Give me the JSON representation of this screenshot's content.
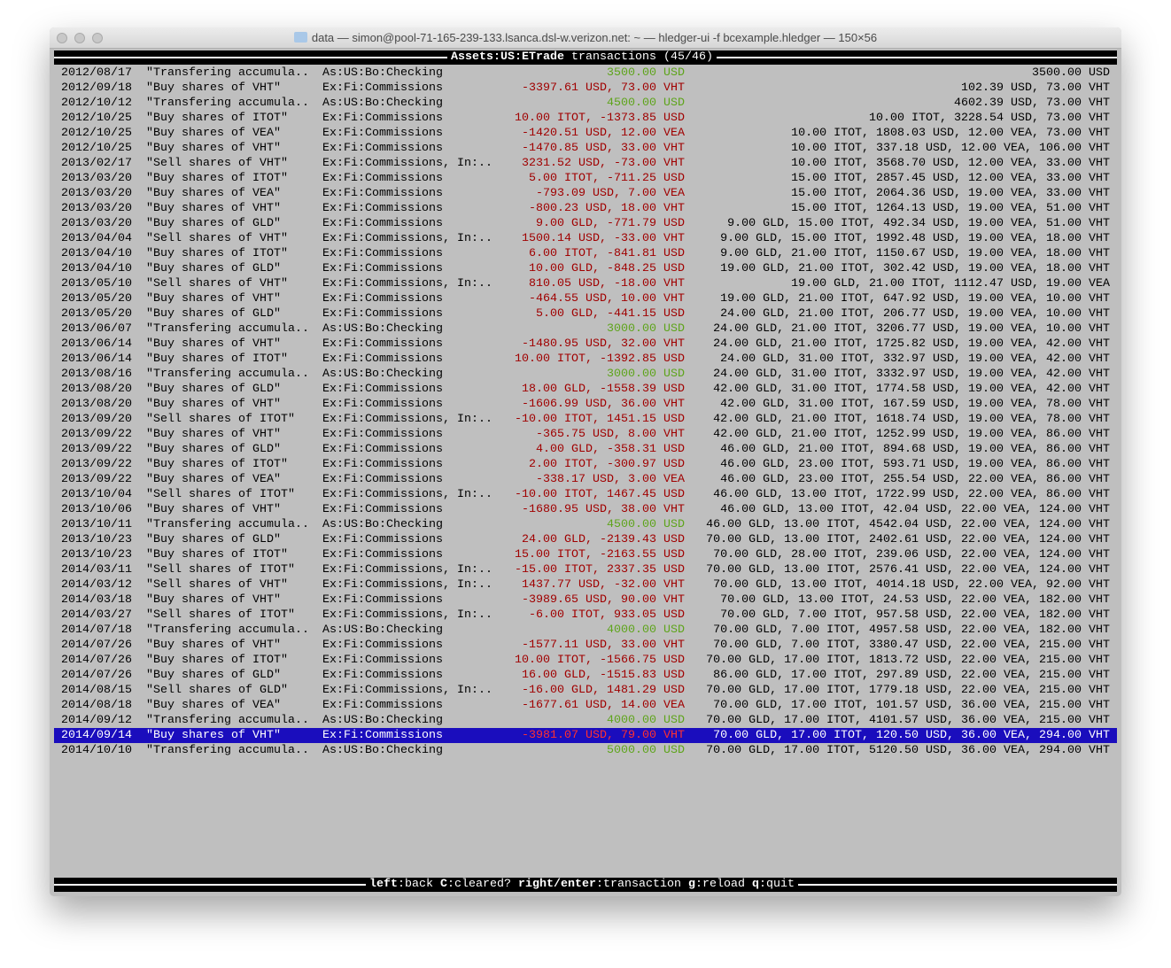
{
  "window": {
    "title": "data — simon@pool-71-165-239-133.lsanca.dsl-w.verizon.net: ~ — hledger-ui -f bcexample.hledger — 150×56"
  },
  "header": {
    "account": "Assets:US:ETrade",
    "suffix": " transactions (45/46)"
  },
  "colors": {
    "positive": "#5ea41b",
    "negative": "#a00000",
    "selection": "#1a0dbd"
  },
  "selected_index": 44,
  "rows": [
    [
      "2012/08/17",
      "\"Transfering accumula..",
      "As:US:Bo:Checking",
      "3500.00 USD",
      "3500.00 USD"
    ],
    [
      "2012/09/18",
      "\"Buy shares of VHT\"",
      "Ex:Fi:Commissions",
      "-3397.61 USD, 73.00 VHT",
      "102.39 USD, 73.00 VHT"
    ],
    [
      "2012/10/12",
      "\"Transfering accumula..",
      "As:US:Bo:Checking",
      "4500.00 USD",
      "4602.39 USD, 73.00 VHT"
    ],
    [
      "2012/10/25",
      "\"Buy shares of ITOT\"",
      "Ex:Fi:Commissions",
      "10.00 ITOT, -1373.85 USD",
      "10.00 ITOT, 3228.54 USD, 73.00 VHT"
    ],
    [
      "2012/10/25",
      "\"Buy shares of VEA\"",
      "Ex:Fi:Commissions",
      "-1420.51 USD, 12.00 VEA",
      "10.00 ITOT, 1808.03 USD, 12.00 VEA, 73.00 VHT"
    ],
    [
      "2012/10/25",
      "\"Buy shares of VHT\"",
      "Ex:Fi:Commissions",
      "-1470.85 USD, 33.00 VHT",
      "10.00 ITOT, 337.18 USD, 12.00 VEA, 106.00 VHT"
    ],
    [
      "2013/02/17",
      "\"Sell shares of VHT\"",
      "Ex:Fi:Commissions, In:..",
      "3231.52 USD, -73.00 VHT",
      "10.00 ITOT, 3568.70 USD, 12.00 VEA, 33.00 VHT"
    ],
    [
      "2013/03/20",
      "\"Buy shares of ITOT\"",
      "Ex:Fi:Commissions",
      "5.00 ITOT, -711.25 USD",
      "15.00 ITOT, 2857.45 USD, 12.00 VEA, 33.00 VHT"
    ],
    [
      "2013/03/20",
      "\"Buy shares of VEA\"",
      "Ex:Fi:Commissions",
      "-793.09 USD, 7.00 VEA",
      "15.00 ITOT, 2064.36 USD, 19.00 VEA, 33.00 VHT"
    ],
    [
      "2013/03/20",
      "\"Buy shares of VHT\"",
      "Ex:Fi:Commissions",
      "-800.23 USD, 18.00 VHT",
      "15.00 ITOT, 1264.13 USD, 19.00 VEA, 51.00 VHT"
    ],
    [
      "2013/03/20",
      "\"Buy shares of GLD\"",
      "Ex:Fi:Commissions",
      "9.00 GLD, -771.79 USD",
      "9.00 GLD, 15.00 ITOT, 492.34 USD, 19.00 VEA, 51.00 VHT"
    ],
    [
      "2013/04/04",
      "\"Sell shares of VHT\"",
      "Ex:Fi:Commissions, In:..",
      "1500.14 USD, -33.00 VHT",
      "9.00 GLD, 15.00 ITOT, 1992.48 USD, 19.00 VEA, 18.00 VHT"
    ],
    [
      "2013/04/10",
      "\"Buy shares of ITOT\"",
      "Ex:Fi:Commissions",
      "6.00 ITOT, -841.81 USD",
      "9.00 GLD, 21.00 ITOT, 1150.67 USD, 19.00 VEA, 18.00 VHT"
    ],
    [
      "2013/04/10",
      "\"Buy shares of GLD\"",
      "Ex:Fi:Commissions",
      "10.00 GLD, -848.25 USD",
      "19.00 GLD, 21.00 ITOT, 302.42 USD, 19.00 VEA, 18.00 VHT"
    ],
    [
      "2013/05/10",
      "\"Sell shares of VHT\"",
      "Ex:Fi:Commissions, In:..",
      "810.05 USD, -18.00 VHT",
      "19.00 GLD, 21.00 ITOT, 1112.47 USD, 19.00 VEA"
    ],
    [
      "2013/05/20",
      "\"Buy shares of VHT\"",
      "Ex:Fi:Commissions",
      "-464.55 USD, 10.00 VHT",
      "19.00 GLD, 21.00 ITOT, 647.92 USD, 19.00 VEA, 10.00 VHT"
    ],
    [
      "2013/05/20",
      "\"Buy shares of GLD\"",
      "Ex:Fi:Commissions",
      "5.00 GLD, -441.15 USD",
      "24.00 GLD, 21.00 ITOT, 206.77 USD, 19.00 VEA, 10.00 VHT"
    ],
    [
      "2013/06/07",
      "\"Transfering accumula..",
      "As:US:Bo:Checking",
      "3000.00 USD",
      "24.00 GLD, 21.00 ITOT, 3206.77 USD, 19.00 VEA, 10.00 VHT"
    ],
    [
      "2013/06/14",
      "\"Buy shares of VHT\"",
      "Ex:Fi:Commissions",
      "-1480.95 USD, 32.00 VHT",
      "24.00 GLD, 21.00 ITOT, 1725.82 USD, 19.00 VEA, 42.00 VHT"
    ],
    [
      "2013/06/14",
      "\"Buy shares of ITOT\"",
      "Ex:Fi:Commissions",
      "10.00 ITOT, -1392.85 USD",
      "24.00 GLD, 31.00 ITOT, 332.97 USD, 19.00 VEA, 42.00 VHT"
    ],
    [
      "2013/08/16",
      "\"Transfering accumula..",
      "As:US:Bo:Checking",
      "3000.00 USD",
      "24.00 GLD, 31.00 ITOT, 3332.97 USD, 19.00 VEA, 42.00 VHT"
    ],
    [
      "2013/08/20",
      "\"Buy shares of GLD\"",
      "Ex:Fi:Commissions",
      "18.00 GLD, -1558.39 USD",
      "42.00 GLD, 31.00 ITOT, 1774.58 USD, 19.00 VEA, 42.00 VHT"
    ],
    [
      "2013/08/20",
      "\"Buy shares of VHT\"",
      "Ex:Fi:Commissions",
      "-1606.99 USD, 36.00 VHT",
      "42.00 GLD, 31.00 ITOT, 167.59 USD, 19.00 VEA, 78.00 VHT"
    ],
    [
      "2013/09/20",
      "\"Sell shares of ITOT\"",
      "Ex:Fi:Commissions, In:..",
      "-10.00 ITOT, 1451.15 USD",
      "42.00 GLD, 21.00 ITOT, 1618.74 USD, 19.00 VEA, 78.00 VHT"
    ],
    [
      "2013/09/22",
      "\"Buy shares of VHT\"",
      "Ex:Fi:Commissions",
      "-365.75 USD, 8.00 VHT",
      "42.00 GLD, 21.00 ITOT, 1252.99 USD, 19.00 VEA, 86.00 VHT"
    ],
    [
      "2013/09/22",
      "\"Buy shares of GLD\"",
      "Ex:Fi:Commissions",
      "4.00 GLD, -358.31 USD",
      "46.00 GLD, 21.00 ITOT, 894.68 USD, 19.00 VEA, 86.00 VHT"
    ],
    [
      "2013/09/22",
      "\"Buy shares of ITOT\"",
      "Ex:Fi:Commissions",
      "2.00 ITOT, -300.97 USD",
      "46.00 GLD, 23.00 ITOT, 593.71 USD, 19.00 VEA, 86.00 VHT"
    ],
    [
      "2013/09/22",
      "\"Buy shares of VEA\"",
      "Ex:Fi:Commissions",
      "-338.17 USD, 3.00 VEA",
      "46.00 GLD, 23.00 ITOT, 255.54 USD, 22.00 VEA, 86.00 VHT"
    ],
    [
      "2013/10/04",
      "\"Sell shares of ITOT\"",
      "Ex:Fi:Commissions, In:..",
      "-10.00 ITOT, 1467.45 USD",
      "46.00 GLD, 13.00 ITOT, 1722.99 USD, 22.00 VEA, 86.00 VHT"
    ],
    [
      "2013/10/06",
      "\"Buy shares of VHT\"",
      "Ex:Fi:Commissions",
      "-1680.95 USD, 38.00 VHT",
      "46.00 GLD, 13.00 ITOT, 42.04 USD, 22.00 VEA, 124.00 VHT"
    ],
    [
      "2013/10/11",
      "\"Transfering accumula..",
      "As:US:Bo:Checking",
      "4500.00 USD",
      "46.00 GLD, 13.00 ITOT, 4542.04 USD, 22.00 VEA, 124.00 VHT"
    ],
    [
      "2013/10/23",
      "\"Buy shares of GLD\"",
      "Ex:Fi:Commissions",
      "24.00 GLD, -2139.43 USD",
      "70.00 GLD, 13.00 ITOT, 2402.61 USD, 22.00 VEA, 124.00 VHT"
    ],
    [
      "2013/10/23",
      "\"Buy shares of ITOT\"",
      "Ex:Fi:Commissions",
      "15.00 ITOT, -2163.55 USD",
      "70.00 GLD, 28.00 ITOT, 239.06 USD, 22.00 VEA, 124.00 VHT"
    ],
    [
      "2014/03/11",
      "\"Sell shares of ITOT\"",
      "Ex:Fi:Commissions, In:..",
      "-15.00 ITOT, 2337.35 USD",
      "70.00 GLD, 13.00 ITOT, 2576.41 USD, 22.00 VEA, 124.00 VHT"
    ],
    [
      "2014/03/12",
      "\"Sell shares of VHT\"",
      "Ex:Fi:Commissions, In:..",
      "1437.77 USD, -32.00 VHT",
      "70.00 GLD, 13.00 ITOT, 4014.18 USD, 22.00 VEA, 92.00 VHT"
    ],
    [
      "2014/03/18",
      "\"Buy shares of VHT\"",
      "Ex:Fi:Commissions",
      "-3989.65 USD, 90.00 VHT",
      "70.00 GLD, 13.00 ITOT, 24.53 USD, 22.00 VEA, 182.00 VHT"
    ],
    [
      "2014/03/27",
      "\"Sell shares of ITOT\"",
      "Ex:Fi:Commissions, In:..",
      "-6.00 ITOT, 933.05 USD",
      "70.00 GLD, 7.00 ITOT, 957.58 USD, 22.00 VEA, 182.00 VHT"
    ],
    [
      "2014/07/18",
      "\"Transfering accumula..",
      "As:US:Bo:Checking",
      "4000.00 USD",
      "70.00 GLD, 7.00 ITOT, 4957.58 USD, 22.00 VEA, 182.00 VHT"
    ],
    [
      "2014/07/26",
      "\"Buy shares of VHT\"",
      "Ex:Fi:Commissions",
      "-1577.11 USD, 33.00 VHT",
      "70.00 GLD, 7.00 ITOT, 3380.47 USD, 22.00 VEA, 215.00 VHT"
    ],
    [
      "2014/07/26",
      "\"Buy shares of ITOT\"",
      "Ex:Fi:Commissions",
      "10.00 ITOT, -1566.75 USD",
      "70.00 GLD, 17.00 ITOT, 1813.72 USD, 22.00 VEA, 215.00 VHT"
    ],
    [
      "2014/07/26",
      "\"Buy shares of GLD\"",
      "Ex:Fi:Commissions",
      "16.00 GLD, -1515.83 USD",
      "86.00 GLD, 17.00 ITOT, 297.89 USD, 22.00 VEA, 215.00 VHT"
    ],
    [
      "2014/08/15",
      "\"Sell shares of GLD\"",
      "Ex:Fi:Commissions, In:..",
      "-16.00 GLD, 1481.29 USD",
      "70.00 GLD, 17.00 ITOT, 1779.18 USD, 22.00 VEA, 215.00 VHT"
    ],
    [
      "2014/08/18",
      "\"Buy shares of VEA\"",
      "Ex:Fi:Commissions",
      "-1677.61 USD, 14.00 VEA",
      "70.00 GLD, 17.00 ITOT, 101.57 USD, 36.00 VEA, 215.00 VHT"
    ],
    [
      "2014/09/12",
      "\"Transfering accumula..",
      "As:US:Bo:Checking",
      "4000.00 USD",
      "70.00 GLD, 17.00 ITOT, 4101.57 USD, 36.00 VEA, 215.00 VHT"
    ],
    [
      "2014/09/14",
      "\"Buy shares of VHT\"",
      "Ex:Fi:Commissions",
      "-3981.07 USD, 79.00 VHT",
      "70.00 GLD, 17.00 ITOT, 120.50 USD, 36.00 VEA, 294.00 VHT"
    ],
    [
      "2014/10/10",
      "\"Transfering accumula..",
      "As:US:Bo:Checking",
      "5000.00 USD",
      "70.00 GLD, 17.00 ITOT, 5120.50 USD, 36.00 VEA, 294.00 VHT"
    ]
  ],
  "footer": {
    "keys": [
      {
        "key": "left",
        "desc": "back"
      },
      {
        "key": "C",
        "desc": "cleared?"
      },
      {
        "key": "right/enter",
        "desc": "transaction"
      },
      {
        "key": "g",
        "desc": "reload"
      },
      {
        "key": "q",
        "desc": "quit"
      }
    ]
  }
}
